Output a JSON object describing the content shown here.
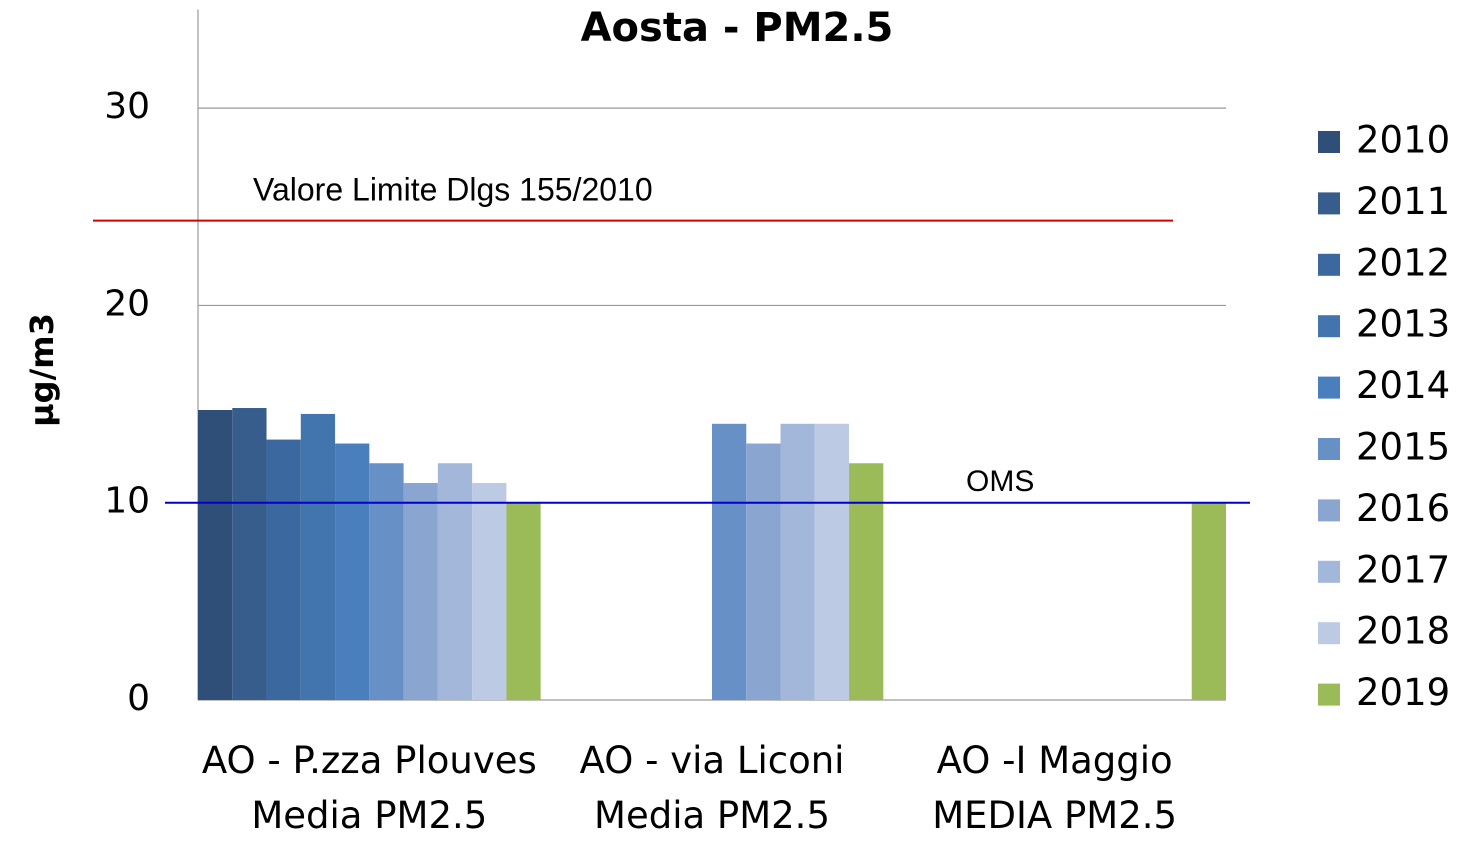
{
  "chart_data": {
    "type": "bar",
    "title": "Aosta - PM2.5",
    "y_label": "µg/m3",
    "categories": [
      "AO - P.zza Plouves\nMedia PM2.5",
      "AO - via Liconi\nMedia PM2.5",
      "AO -I Maggio\nMEDIA PM2.5"
    ],
    "series": [
      {
        "name": "2010",
        "color": "#2f4f78",
        "values": [
          14.7,
          null,
          null
        ]
      },
      {
        "name": "2011",
        "color": "#375d8c",
        "values": [
          14.8,
          null,
          null
        ]
      },
      {
        "name": "2012",
        "color": "#3b689e",
        "values": [
          13.2,
          null,
          null
        ]
      },
      {
        "name": "2013",
        "color": "#4274ad",
        "values": [
          14.5,
          null,
          null
        ]
      },
      {
        "name": "2014",
        "color": "#4a7fbd",
        "values": [
          13.0,
          null,
          null
        ]
      },
      {
        "name": "2015",
        "color": "#6690c6",
        "values": [
          12.0,
          14.0,
          null
        ]
      },
      {
        "name": "2016",
        "color": "#8aa5cf",
        "values": [
          11.0,
          13.0,
          null
        ]
      },
      {
        "name": "2017",
        "color": "#a3b7da",
        "values": [
          12.0,
          14.0,
          null
        ]
      },
      {
        "name": "2018",
        "color": "#bccae4",
        "values": [
          11.0,
          14.0,
          null
        ]
      },
      {
        "name": "2019",
        "color": "#9bbb59",
        "values": [
          10.0,
          12.0,
          10.0
        ]
      }
    ],
    "ylim": [
      0,
      35
    ],
    "yticks": [
      0,
      10,
      20,
      30
    ],
    "grid": true,
    "legend": "right",
    "reference_lines": [
      {
        "label": "Valore Limite Dlgs 155/2010",
        "value": 24.3,
        "color": "#d40000"
      },
      {
        "label": "OMS",
        "value": 10,
        "color": "#0000cc"
      }
    ]
  }
}
